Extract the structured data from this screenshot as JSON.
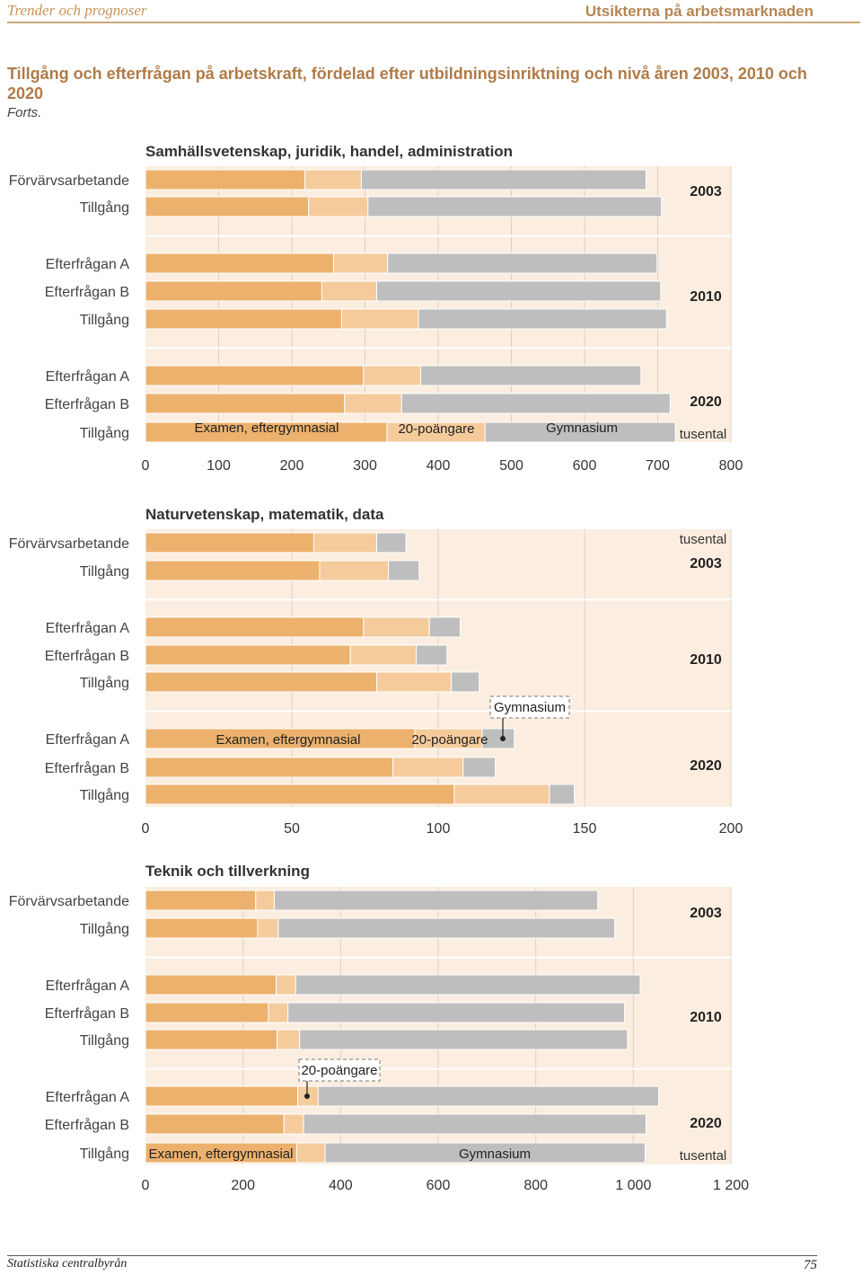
{
  "header": {
    "left": "Trender och prognoser",
    "right": "Utsikterna på arbetsmarknaden"
  },
  "title": "Tillgång och efterfrågan på arbetskraft, fördelad efter utbildningsinriktning och nivå åren 2003, 2010 och 2020",
  "subtitle": "Forts.",
  "footer": {
    "left": "Statistiska centralbyrån",
    "right": "75"
  },
  "colors": {
    "examen": "#ecb16d",
    "poang20": "#f5cb9c",
    "gymnasium": "#bebebe",
    "panel_bg": "#fbeee0",
    "grid": "#ddd0c2"
  },
  "chart_data": [
    {
      "type": "bar",
      "stacked": true,
      "orientation": "horizontal",
      "title": "Samhällsvetenskap, juridik, handel, administration",
      "unit": "tusental",
      "xlim": [
        0,
        800
      ],
      "ticks": [
        "0",
        "100",
        "200",
        "300",
        "400",
        "500",
        "600",
        "700",
        "800"
      ],
      "tick_values": [
        0,
        100,
        200,
        300,
        400,
        500,
        600,
        700,
        800
      ],
      "series_names": [
        "Examen, eftergymnasial",
        "20-poängare",
        "Gymnasium"
      ],
      "series_labels": [
        {
          "text": "Examen, eftergymnasial",
          "series": 0
        },
        {
          "text": "20-poängare",
          "series": 1
        },
        {
          "text": "Gymnasium",
          "series": 2
        }
      ],
      "groups": [
        {
          "year": "2003",
          "rows": [
            {
              "label": "Förvärvsarbetande",
              "values": [
                218,
                77,
                389
              ]
            },
            {
              "label": "Tillgång",
              "values": [
                223,
                81,
                401
              ]
            }
          ]
        },
        {
          "year": "2010",
          "rows": [
            {
              "label": "Efterfrågan A",
              "values": [
                257,
                74,
                368
              ]
            },
            {
              "label": "Efterfrågan B",
              "values": [
                241,
                75,
                388
              ]
            },
            {
              "label": "Tillgång",
              "values": [
                268,
                105,
                339
              ]
            }
          ]
        },
        {
          "year": "2020",
          "rows": [
            {
              "label": "Efterfrågan A",
              "values": [
                298,
                78,
                301
              ]
            },
            {
              "label": "Efterfrågan B",
              "values": [
                272,
                78,
                367
              ]
            },
            {
              "label": "Tillgång",
              "values": [
                330,
                134,
                260
              ]
            }
          ]
        }
      ]
    },
    {
      "type": "bar",
      "stacked": true,
      "orientation": "horizontal",
      "title": "Naturvetenskap, matematik, data",
      "unit": "tusental",
      "xlim": [
        0,
        200
      ],
      "ticks": [
        "0",
        "50",
        "100",
        "150",
        "200"
      ],
      "tick_values": [
        0,
        50,
        100,
        150,
        200
      ],
      "series_names": [
        "Examen, eftergymnasial",
        "20-poängare",
        "Gymnasium"
      ],
      "series_labels": [
        {
          "text": "Examen, eftergymnasial",
          "series": 0
        },
        {
          "text": "20-poängare",
          "series": 1
        },
        {
          "text": "Gymnasium",
          "series": 2,
          "callout": true
        }
      ],
      "groups": [
        {
          "year": "2003",
          "rows": [
            {
              "label": "Förvärvsarbetande",
              "values": [
                57.5,
                21.5,
                10
              ]
            },
            {
              "label": "Tillgång",
              "values": [
                59.5,
                23.5,
                10.5
              ]
            }
          ]
        },
        {
          "year": "2010",
          "rows": [
            {
              "label": "Efterfrågan A",
              "values": [
                74.5,
                22.5,
                10.5
              ]
            },
            {
              "label": "Efterfrågan B",
              "values": [
                70,
                22.5,
                10.5
              ]
            },
            {
              "label": "Tillgång",
              "values": [
                79,
                25.5,
                9.5
              ]
            }
          ]
        },
        {
          "year": "2020",
          "rows": [
            {
              "label": "Efterfrågan A",
              "values": [
                92,
                23,
                11
              ]
            },
            {
              "label": "Efterfrågan B",
              "values": [
                84.5,
                24,
                11
              ]
            },
            {
              "label": "Tillgång",
              "values": [
                105.5,
                32.5,
                8.5
              ]
            }
          ]
        }
      ]
    },
    {
      "type": "bar",
      "stacked": true,
      "orientation": "horizontal",
      "title": "Teknik och tillverkning",
      "unit": "tusental",
      "xlim": [
        0,
        1200
      ],
      "ticks": [
        "0",
        "200",
        "400",
        "600",
        "800",
        "1 000",
        "1 200"
      ],
      "tick_values": [
        0,
        200,
        400,
        600,
        800,
        1000,
        1200
      ],
      "series_names": [
        "Examen, eftergymnasial",
        "20-poängare",
        "Gymnasium"
      ],
      "series_labels": [
        {
          "text": "Examen, eftergymnasial",
          "series": 0
        },
        {
          "text": "20-poängare",
          "series": 1,
          "callout": true
        },
        {
          "text": "Gymnasium",
          "series": 2
        }
      ],
      "groups": [
        {
          "year": "2003",
          "rows": [
            {
              "label": "Förvärvsarbetande",
              "values": [
                226,
                38,
                663
              ]
            },
            {
              "label": "Tillgång",
              "values": [
                230,
                42,
                690
              ]
            }
          ]
        },
        {
          "year": "2010",
          "rows": [
            {
              "label": "Efterfrågan A",
              "values": [
                268,
                40,
                706
              ]
            },
            {
              "label": "Efterfrågan B",
              "values": [
                252,
                40,
                690
              ]
            },
            {
              "label": "Tillgång",
              "values": [
                270,
                46,
                672
              ]
            }
          ]
        },
        {
          "year": "2020",
          "rows": [
            {
              "label": "Efterfrågan A",
              "values": [
                312,
                42,
                698
              ]
            },
            {
              "label": "Efterfrågan B",
              "values": [
                284,
                40,
                702
              ]
            },
            {
              "label": "Tillgång",
              "values": [
                310,
                58,
                656
              ]
            }
          ]
        }
      ]
    }
  ]
}
